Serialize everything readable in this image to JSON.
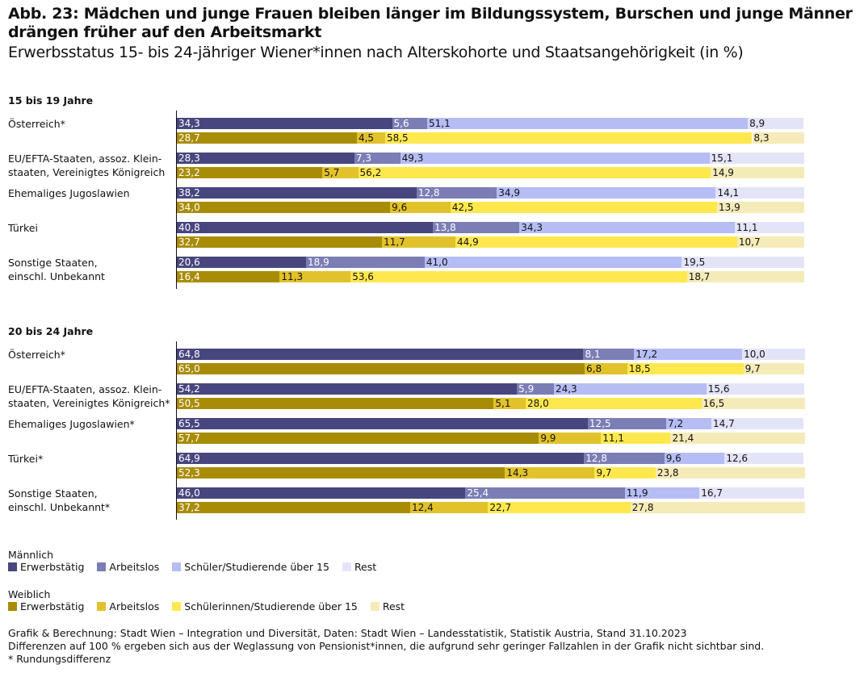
{
  "title": "Abb. 23: Mädchen und junge Frauen bleiben länger im Bildungssystem, Burschen und junge Männer drängen früher auf den Arbeitsmarkt",
  "subtitle": "Erwerbsstatus 15- bis 24-jähriger Wiener*innen nach Alterskohorte und Staatsangehörigkeit (in %)",
  "chart_data": {
    "type": "bar",
    "stacked": true,
    "orientation": "horizontal",
    "xlim": [
      0,
      100
    ],
    "colors": {
      "male": [
        "#47467f",
        "#7b7db5",
        "#b6bdf5",
        "#e4e4f9"
      ],
      "female": [
        "#a98c06",
        "#e2c22a",
        "#ffe84e",
        "#f5ebb8"
      ]
    },
    "groups": [
      {
        "title": "15 bis 19 Jahre",
        "categories": [
          {
            "label": "Österreich*",
            "male": [
              34.3,
              5.6,
              51.1,
              8.9
            ],
            "female": [
              28.7,
              4.5,
              58.5,
              8.3
            ]
          },
          {
            "label": "EU/EFTA-Staaten, assoz. Klein-\nstaaten, Vereinigtes Königreich",
            "male": [
              28.3,
              7.3,
              49.3,
              15.1
            ],
            "female": [
              23.2,
              5.7,
              56.2,
              14.9
            ]
          },
          {
            "label": "Ehemaliges Jugoslawien",
            "male": [
              38.2,
              12.8,
              34.9,
              14.1
            ],
            "female": [
              34.0,
              9.6,
              42.5,
              13.9
            ]
          },
          {
            "label": "Türkei",
            "male": [
              40.8,
              13.8,
              34.3,
              11.1
            ],
            "female": [
              32.7,
              11.7,
              44.9,
              10.7
            ]
          },
          {
            "label": "Sonstige Staaten,\neinschl. Unbekannt",
            "male": [
              20.6,
              18.9,
              41.0,
              19.5
            ],
            "female": [
              16.4,
              11.3,
              53.6,
              18.7
            ]
          }
        ]
      },
      {
        "title": "20 bis 24 Jahre",
        "categories": [
          {
            "label": "Österreich*",
            "male": [
              64.8,
              8.1,
              17.2,
              10.0
            ],
            "female": [
              65.0,
              6.8,
              18.5,
              9.7
            ]
          },
          {
            "label": "EU/EFTA-Staaten, assoz. Klein-\nstaaten, Vereinigtes Königreich*",
            "male": [
              54.2,
              5.9,
              24.3,
              15.6
            ],
            "female": [
              50.5,
              5.1,
              28.0,
              16.5
            ]
          },
          {
            "label": "Ehemaliges Jugoslawien*",
            "male": [
              65.5,
              12.5,
              7.2,
              14.7
            ],
            "female": [
              57.7,
              9.9,
              11.1,
              21.4
            ]
          },
          {
            "label": "Türkei*",
            "male": [
              64.9,
              12.8,
              9.6,
              12.6
            ],
            "female": [
              52.3,
              14.3,
              9.7,
              23.8
            ]
          },
          {
            "label": "Sonstige Staaten,\neinschl. Unbekannt*",
            "male": [
              46.0,
              25.4,
              11.9,
              16.7
            ],
            "female": [
              37.2,
              12.4,
              22.7,
              27.8
            ]
          }
        ]
      }
    ],
    "legend": {
      "male": {
        "title": "Männlich",
        "items": [
          "Erwerbstätig",
          "Arbeitslos",
          "Schüler/Studierende über 15",
          "Rest"
        ]
      },
      "female": {
        "title": "Weiblich",
        "items": [
          "Erwerbstätig",
          "Arbeitslos",
          "Schülerinnen/Studierende über 15",
          "Rest"
        ]
      }
    }
  },
  "footer": [
    "Grafik & Berechnung: Stadt Wien – Integration und Diversität, Daten: Stadt Wien – Landesstatistik, Statistik Austria, Stand 31.10.2023",
    "Differenzen auf 100 % ergeben sich aus der Weglassung von Pensionist*innen, die aufgrund sehr geringer Fallzahlen in der Grafik nicht sichtbar sind.",
    "* Rundungsdifferenz"
  ]
}
